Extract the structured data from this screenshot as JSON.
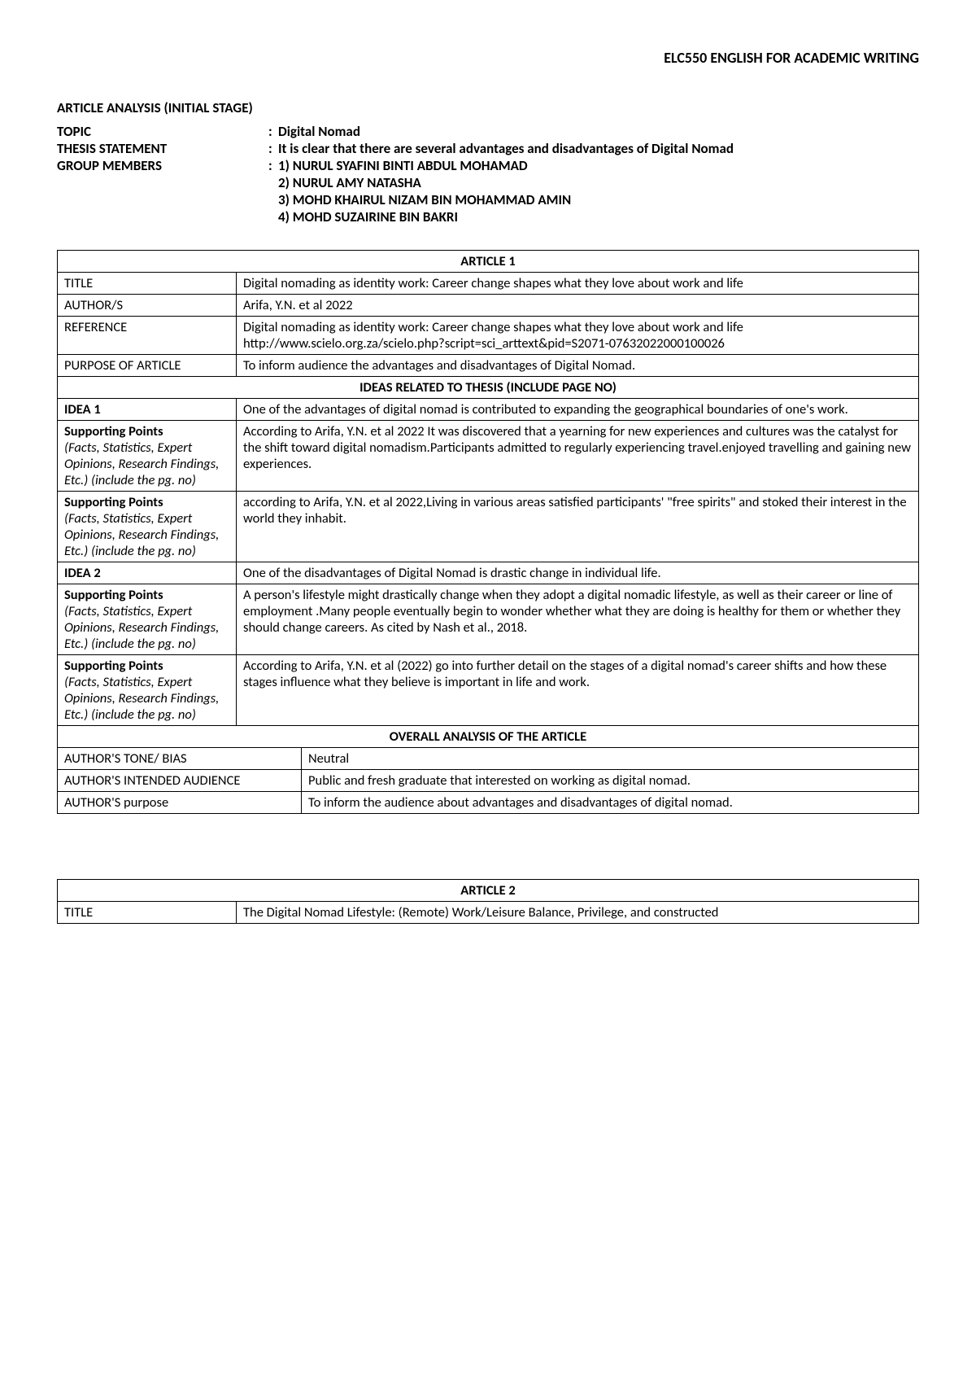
{
  "course_header": "ELC550 ENGLISH FOR ACADEMIC WRITING",
  "heading": "ARTICLE ANALYSIS (INITIAL STAGE)",
  "meta": {
    "topic_label": "TOPIC",
    "topic_value": "Digital Nomad",
    "thesis_label": "THESIS STATEMENT",
    "thesis_value": "It is clear that there are several advantages and disadvantages of Digital Nomad",
    "members_label": "GROUP MEMBERS",
    "members": [
      "1) NURUL SYAFINI BINTI ABDUL MOHAMAD",
      "2) NURUL AMY NATASHA",
      "3) MOHD KHAIRUL NIZAM BIN MOHAMMAD AMIN",
      "4) MOHD SUZAIRINE BIN BAKRI"
    ]
  },
  "article1": {
    "header": "ARTICLE 1",
    "title_label": "TITLE",
    "title_value": "Digital nomading as identity work: Career change shapes what they love about work and life",
    "authors_label": "AUTHOR/S",
    "authors_value": "Arifa, Y.N. et al 2022",
    "reference_label": "REFERENCE",
    "reference_value_line1": "Digital nomading as identity work: Career change shapes what they love about work and life",
    "reference_value_line2": "http://www.scielo.org.za/scielo.php?script=sci_arttext&pid=S2071-07632022000100026",
    "purpose_label": "PURPOSE OF ARTICLE",
    "purpose_value": "To inform audience the advantages and disadvantages of Digital Nomad.",
    "ideas_header": "IDEAS RELATED TO THESIS (INCLUDE PAGE NO)",
    "idea1_label": "IDEA 1",
    "idea1_value": "One of the advantages of digital nomad is contributed to expanding the geographical boundaries of one's work.",
    "supporting_label_bold": "Supporting Points",
    "supporting_label_italic": "(Facts, Statistics, Expert Opinions, Research Findings, Etc.) (include the pg. no)",
    "sp1a": "According to Arifa, Y.N. et al 2022 It was discovered that a yearning for new experiences and cultures was the catalyst for the shift toward digital nomadism.Participants admitted to regularly experiencing travel.enjoyed travelling and gaining new experiences.",
    "sp1b": "according to Arifa, Y.N. et al 2022,Living in various areas satisfied participants' \"free spirits\" and stoked their interest in the world they inhabit.",
    "idea2_label": "IDEA 2",
    "idea2_value": "One of the disadvantages of Digital Nomad is drastic change in individual life.",
    "sp2a": "A person's lifestyle might drastically change when they adopt a digital nomadic lifestyle, as well as their career or line of employment .Many people eventually begin to wonder whether what they are doing is healthy for them or whether they should change careers. As cited by Nash et al., 2018.",
    "sp2b": "According to Arifa, Y.N. et al (2022) go into further detail on the stages of a digital nomad's career shifts and how these stages influence what they believe is important in life and work.",
    "overall_header": "OVERALL ANALYSIS OF THE ARTICLE",
    "tone_label": "AUTHOR'S TONE/ BIAS",
    "tone_value": "Neutral",
    "audience_label": "AUTHOR'S INTENDED AUDIENCE",
    "audience_value": "Public and fresh graduate that interested on working as digital nomad.",
    "authpurpose_label": "AUTHOR'S purpose",
    "authpurpose_value": "To inform the audience about advantages and disadvantages of digital nomad."
  },
  "article2": {
    "header": "ARTICLE 2",
    "title_label": "TITLE",
    "title_value": "The Digital Nomad Lifestyle: (Remote) Work/Leisure Balance, Privilege, and constructed"
  }
}
